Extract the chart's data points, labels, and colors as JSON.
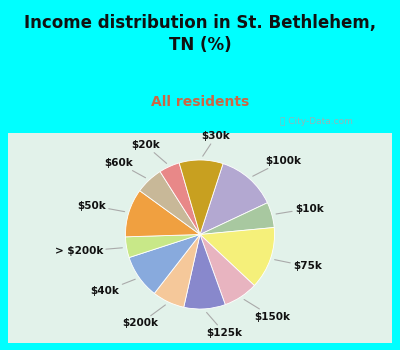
{
  "title": "Income distribution in St. Bethlehem,\nTN (%)",
  "subtitle": "All residents",
  "title_color": "#111111",
  "subtitle_color": "#cc6644",
  "bg_cyan": "#00ffff",
  "bg_chart": "#e8f5ee",
  "watermark": "City-Data.com",
  "labels": [
    "$100k",
    "$10k",
    "$75k",
    "$150k",
    "$125k",
    "$200k",
    "$40k",
    "> $200k",
    "$50k",
    "$60k",
    "$20k",
    "$30k"
  ],
  "values": [
    13.0,
    5.5,
    13.5,
    7.5,
    9.0,
    7.0,
    9.5,
    4.5,
    10.5,
    6.0,
    4.5,
    9.5
  ],
  "colors": [
    "#b3a8d1",
    "#a8c8a0",
    "#f5f07a",
    "#e8b4c0",
    "#8888cc",
    "#f5c89a",
    "#88aadd",
    "#c8e888",
    "#f0a040",
    "#c8b898",
    "#e88888",
    "#c8a020"
  ],
  "label_fontsize": 7.5,
  "title_fontsize": 12,
  "subtitle_fontsize": 10,
  "startangle": 72
}
